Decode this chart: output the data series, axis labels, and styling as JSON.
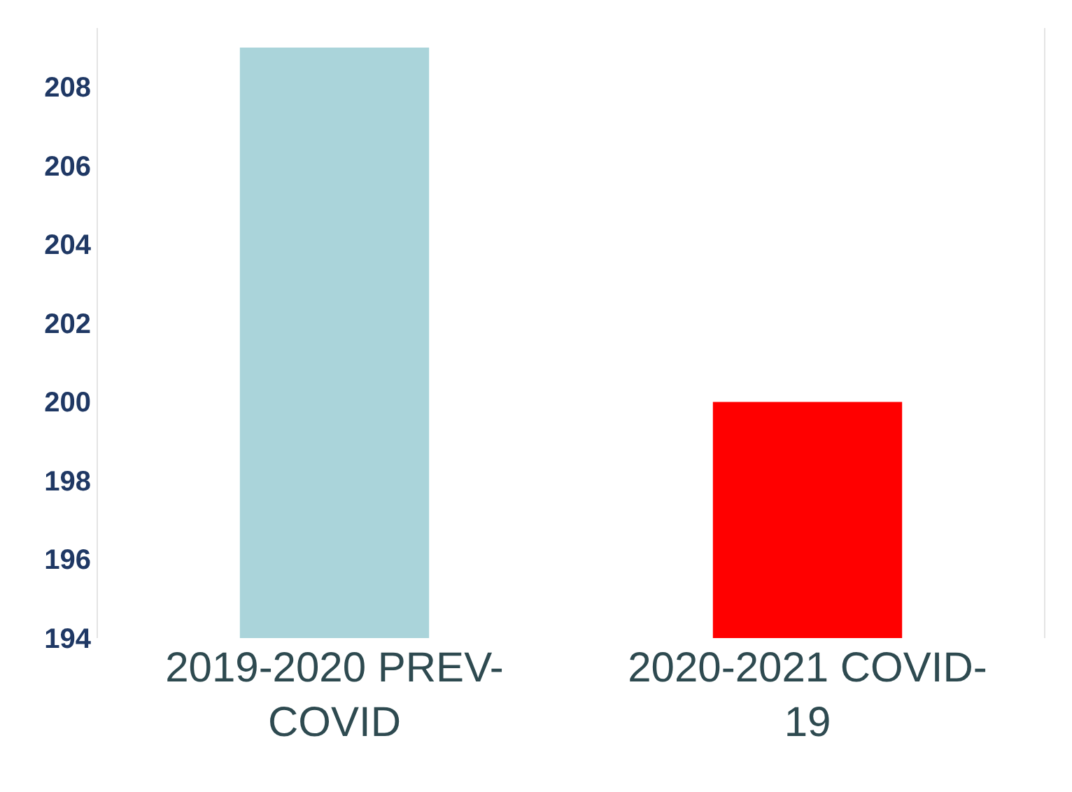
{
  "chart_data": {
    "type": "bar",
    "categories": [
      "2019-2020 PREV-COVID",
      "2020-2021 COVID-19"
    ],
    "values": [
      209,
      200
    ],
    "colors": [
      "#aad4da",
      "#ff0000"
    ],
    "ylim": [
      194,
      209.5
    ],
    "yticks": [
      194,
      196,
      198,
      200,
      202,
      204,
      206,
      208
    ],
    "grid": false
  }
}
